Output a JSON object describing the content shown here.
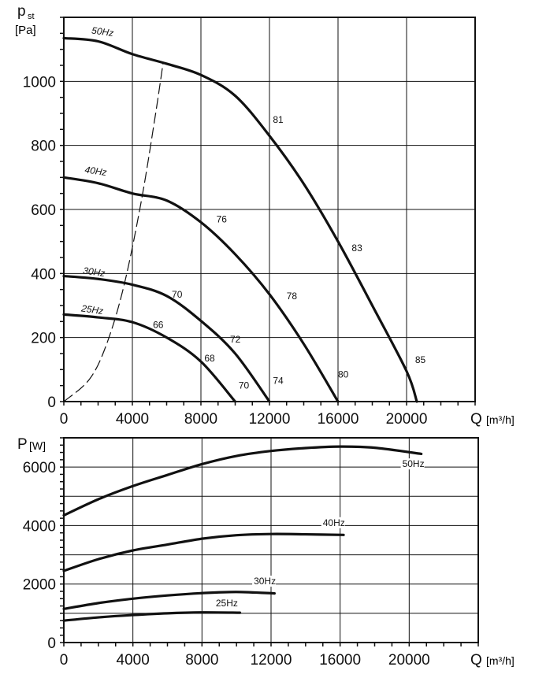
{
  "chart_data": [
    {
      "type": "line",
      "title": "",
      "ylabel": "p_st [Pa]",
      "ylabel_main": "p",
      "ylabel_sub": "st",
      "ylabel_unit": "[Pa]",
      "xlabel": "Q",
      "xlabel_unit": "[m³/h]",
      "xlim": [
        0,
        24000
      ],
      "ylim": [
        0,
        1200
      ],
      "xticks": [
        0,
        4000,
        8000,
        12000,
        16000,
        20000
      ],
      "yticks": [
        0,
        200,
        400,
        600,
        800,
        1000
      ],
      "series": [
        {
          "name": "50Hz",
          "points": [
            [
              0,
              1135
            ],
            [
              2000,
              1125
            ],
            [
              4000,
              1085
            ],
            [
              6000,
              1055
            ],
            [
              8000,
              1020
            ],
            [
              10000,
              955
            ],
            [
              12000,
              830
            ],
            [
              14000,
              680
            ],
            [
              16000,
              500
            ],
            [
              18000,
              300
            ],
            [
              20000,
              95
            ],
            [
              20600,
              0
            ]
          ]
        },
        {
          "name": "40Hz",
          "points": [
            [
              0,
              700
            ],
            [
              2000,
              682
            ],
            [
              4000,
              650
            ],
            [
              6000,
              628
            ],
            [
              8000,
              560
            ],
            [
              10000,
              460
            ],
            [
              12000,
              335
            ],
            [
              14000,
              180
            ],
            [
              16000,
              0
            ]
          ]
        },
        {
          "name": "30Hz",
          "points": [
            [
              0,
              392
            ],
            [
              2000,
              383
            ],
            [
              4000,
              365
            ],
            [
              6000,
              330
            ],
            [
              8000,
              252
            ],
            [
              10000,
              150
            ],
            [
              12000,
              0
            ]
          ]
        },
        {
          "name": "25Hz",
          "points": [
            [
              0,
              272
            ],
            [
              2000,
              263
            ],
            [
              4000,
              248
            ],
            [
              6000,
              200
            ],
            [
              8000,
              125
            ],
            [
              10000,
              0
            ]
          ]
        }
      ],
      "system_curve": [
        [
          0,
          0
        ],
        [
          1500,
          70
        ],
        [
          2500,
          180
        ],
        [
          3500,
          360
        ],
        [
          4500,
          620
        ],
        [
          5300,
          880
        ],
        [
          5800,
          1060
        ]
      ],
      "annotations": [
        {
          "text": "81",
          "x": 12200,
          "y": 870
        },
        {
          "text": "83",
          "x": 16800,
          "y": 470
        },
        {
          "text": "85",
          "x": 20500,
          "y": 120
        },
        {
          "text": "76",
          "x": 8900,
          "y": 560
        },
        {
          "text": "78",
          "x": 13000,
          "y": 320
        },
        {
          "text": "80",
          "x": 16000,
          "y": 75
        },
        {
          "text": "70",
          "x": 6300,
          "y": 325
        },
        {
          "text": "72",
          "x": 9700,
          "y": 185
        },
        {
          "text": "74",
          "x": 12200,
          "y": 55
        },
        {
          "text": "66",
          "x": 5200,
          "y": 230
        },
        {
          "text": "68",
          "x": 8200,
          "y": 125
        },
        {
          "text": "70",
          "x": 10200,
          "y": 40
        }
      ]
    },
    {
      "type": "line",
      "title": "",
      "ylabel": "P [W]",
      "ylabel_main": "P",
      "ylabel_unit": "[W]",
      "xlabel": "Q",
      "xlabel_unit": "[m³/h]",
      "xlim": [
        0,
        24000
      ],
      "ylim": [
        0,
        7000
      ],
      "xticks": [
        0,
        4000,
        8000,
        12000,
        16000,
        20000
      ],
      "yticks": [
        0,
        2000,
        4000,
        6000
      ],
      "series": [
        {
          "name": "50Hz",
          "points": [
            [
              0,
              4350
            ],
            [
              2000,
              4900
            ],
            [
              4000,
              5350
            ],
            [
              6000,
              5730
            ],
            [
              8000,
              6100
            ],
            [
              10000,
              6380
            ],
            [
              12000,
              6550
            ],
            [
              14000,
              6650
            ],
            [
              16000,
              6700
            ],
            [
              18000,
              6660
            ],
            [
              20700,
              6450
            ]
          ]
        },
        {
          "name": "40Hz",
          "points": [
            [
              0,
              2450
            ],
            [
              2000,
              2850
            ],
            [
              4000,
              3150
            ],
            [
              6000,
              3350
            ],
            [
              8000,
              3550
            ],
            [
              10000,
              3670
            ],
            [
              12000,
              3710
            ],
            [
              14000,
              3700
            ],
            [
              16200,
              3680
            ]
          ]
        },
        {
          "name": "30Hz",
          "points": [
            [
              0,
              1150
            ],
            [
              2000,
              1350
            ],
            [
              4000,
              1500
            ],
            [
              6000,
              1610
            ],
            [
              8000,
              1690
            ],
            [
              10000,
              1730
            ],
            [
              12200,
              1680
            ]
          ]
        },
        {
          "name": "25Hz",
          "points": [
            [
              0,
              750
            ],
            [
              2000,
              860
            ],
            [
              4000,
              940
            ],
            [
              6000,
              1000
            ],
            [
              8000,
              1030
            ],
            [
              10200,
              1020
            ]
          ]
        }
      ],
      "annotations": [
        {
          "text": "50Hz",
          "x": 19600,
          "y": 6000
        },
        {
          "text": "40Hz",
          "x": 15000,
          "y": 3990
        },
        {
          "text": "30Hz",
          "x": 11000,
          "y": 1990
        },
        {
          "text": "25Hz",
          "x": 8800,
          "y": 1240
        }
      ]
    }
  ]
}
